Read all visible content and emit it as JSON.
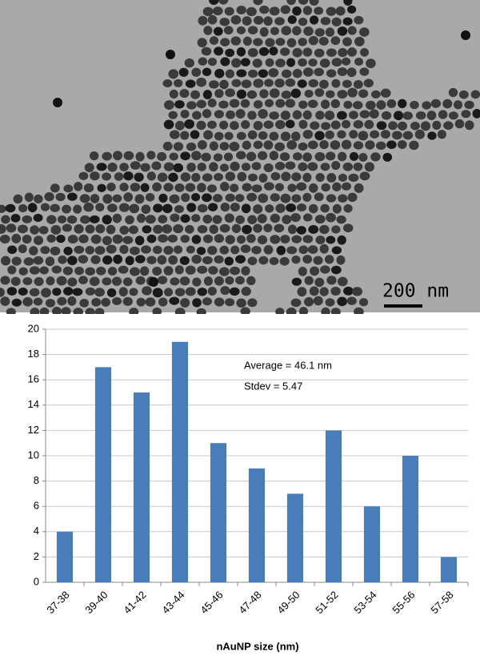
{
  "micrograph": {
    "scale_bar_label": "200 nm"
  },
  "chart_data": {
    "type": "bar",
    "categories": [
      "37-38",
      "39-40",
      "41-42",
      "43-44",
      "45-46",
      "47-48",
      "49-50",
      "51-52",
      "53-54",
      "55-56",
      "57-58"
    ],
    "values": [
      4,
      17,
      15,
      19,
      11,
      9,
      7,
      12,
      6,
      10,
      2
    ],
    "color": "#4a7ebb",
    "x_label": "nAuNP size (nm)",
    "annotations": [
      "Average = 46.1 nm",
      "Stdev = 5.47"
    ],
    "ylim": [
      0,
      20
    ],
    "yticks": [
      0,
      2,
      4,
      6,
      8,
      10,
      12,
      14,
      16,
      18,
      20
    ],
    "grid": true
  }
}
